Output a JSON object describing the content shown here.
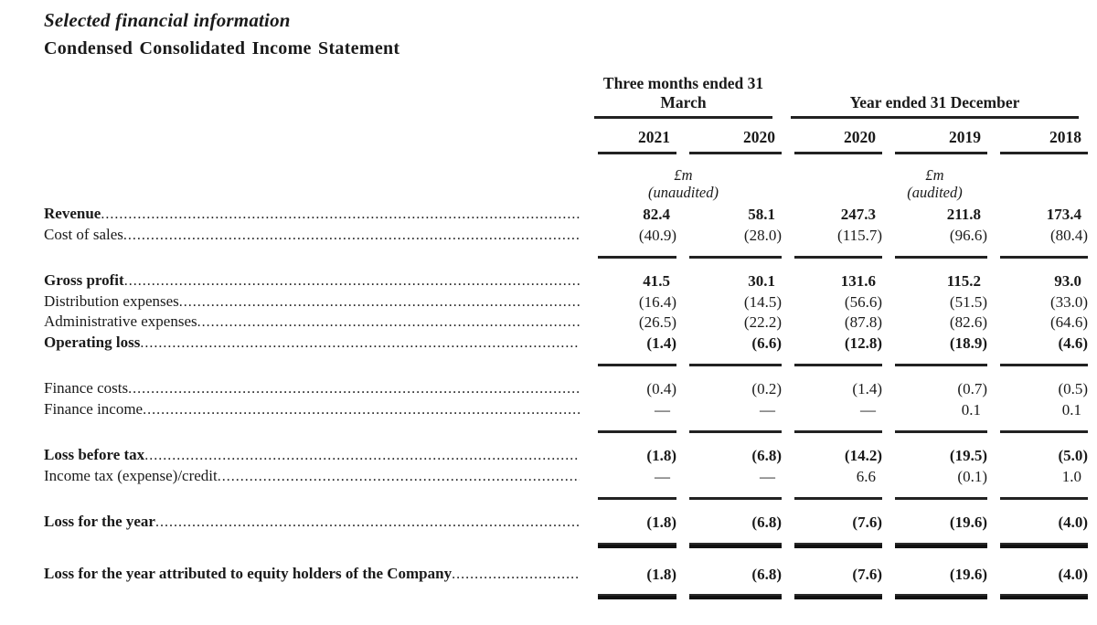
{
  "page": {
    "section_title": "Selected financial information",
    "statement_title": "Condensed Consolidated Income Statement"
  },
  "table": {
    "column_groups": [
      {
        "label": "Three months ended 31 March",
        "span": 2
      },
      {
        "label": "Year ended 31 December",
        "span": 3
      }
    ],
    "columns": [
      "2021",
      "2020",
      "2020",
      "2019",
      "2018"
    ],
    "units": [
      {
        "currency": "£m",
        "audit_note": "(unaudited)"
      },
      {
        "currency": "£m",
        "audit_note": "(audited)"
      }
    ],
    "rows": [
      {
        "label": "Revenue",
        "bold": true,
        "values": [
          "82.4",
          "58.1",
          "247.3",
          "211.8",
          "173.4"
        ],
        "rule_after": null
      },
      {
        "label": "Cost of sales",
        "bold": false,
        "values": [
          "(40.9)",
          "(28.0)",
          "(115.7)",
          "(96.6)",
          "(80.4)"
        ],
        "rule_after": "single"
      },
      {
        "label": "Gross profit",
        "bold": true,
        "values": [
          "41.5",
          "30.1",
          "131.6",
          "115.2",
          "93.0"
        ],
        "rule_after": null
      },
      {
        "label": "Distribution expenses",
        "bold": false,
        "values": [
          "(16.4)",
          "(14.5)",
          "(56.6)",
          "(51.5)",
          "(33.0)"
        ],
        "rule_after": null
      },
      {
        "label": "Administrative expenses",
        "bold": false,
        "values": [
          "(26.5)",
          "(22.2)",
          "(87.8)",
          "(82.6)",
          "(64.6)"
        ],
        "rule_after": null
      },
      {
        "label": "Operating loss",
        "bold": true,
        "values": [
          "(1.4)",
          "(6.6)",
          "(12.8)",
          "(18.9)",
          "(4.6)"
        ],
        "rule_after": "single"
      },
      {
        "label": "Finance costs",
        "bold": false,
        "values": [
          "(0.4)",
          "(0.2)",
          "(1.4)",
          "(0.7)",
          "(0.5)"
        ],
        "rule_after": null
      },
      {
        "label": "Finance income",
        "bold": false,
        "values": [
          "—",
          "—",
          "—",
          "0.1",
          "0.1"
        ],
        "rule_after": "single"
      },
      {
        "label": "Loss before tax",
        "bold": true,
        "values": [
          "(1.8)",
          "(6.8)",
          "(14.2)",
          "(19.5)",
          "(5.0)"
        ],
        "rule_after": null
      },
      {
        "label": "Income tax (expense)/credit",
        "bold": false,
        "values": [
          "—",
          "—",
          "6.6",
          "(0.1)",
          "1.0"
        ],
        "rule_after": "single"
      },
      {
        "label": "Loss for the year",
        "bold": true,
        "values": [
          "(1.8)",
          "(6.8)",
          "(7.6)",
          "(19.6)",
          "(4.0)"
        ],
        "rule_after": "double"
      },
      {
        "label": "Loss for the year attributed to equity holders of the Company",
        "bold": true,
        "values": [
          "(1.8)",
          "(6.8)",
          "(7.6)",
          "(19.6)",
          "(4.0)"
        ],
        "rule_after": "double"
      }
    ]
  }
}
